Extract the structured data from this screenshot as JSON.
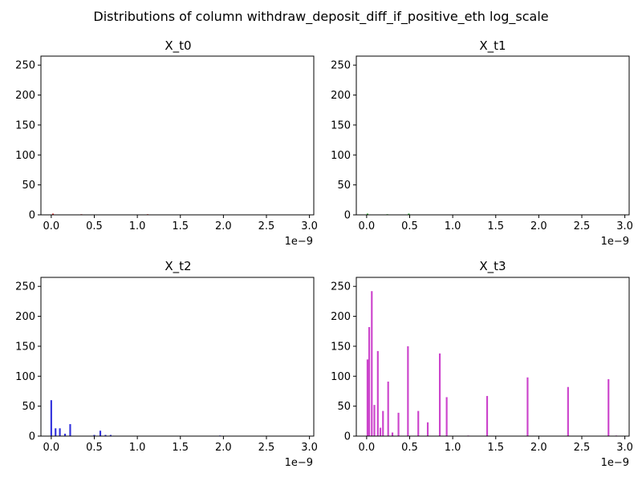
{
  "figure": {
    "title": "Distributions of column withdraw_deposit_diff_if_positive_eth log_scale"
  },
  "chart_data": [
    {
      "type": "bar",
      "title": "X_t0",
      "color": "#dd2222",
      "xlim": [
        -1.2e-10,
        3.05e-09
      ],
      "ylim": [
        0,
        265
      ],
      "xticks": [
        0,
        0.5,
        1.0,
        1.5,
        2.0,
        2.5,
        3.0
      ],
      "xtick_labels": [
        "0.0",
        "0.5",
        "1.0",
        "1.5",
        "2.0",
        "2.5",
        "3.0"
      ],
      "yticks": [
        0,
        50,
        100,
        150,
        200,
        250
      ],
      "ytick_labels": [
        "0",
        "50",
        "100",
        "150",
        "200",
        "250"
      ],
      "x_offset_label": "1e−9",
      "bar_width": 2e-11,
      "bars": [
        {
          "x": 2e-11,
          "y": 2
        },
        {
          "x": 3.5e-10,
          "y": 1
        },
        {
          "x": 1.12e-09,
          "y": 1
        }
      ]
    },
    {
      "type": "bar",
      "title": "X_t1",
      "color": "#22aa22",
      "xlim": [
        -1.2e-10,
        3.05e-09
      ],
      "ylim": [
        0,
        265
      ],
      "xticks": [
        0,
        0.5,
        1.0,
        1.5,
        2.0,
        2.5,
        3.0
      ],
      "xtick_labels": [
        "0.0",
        "0.5",
        "1.0",
        "1.5",
        "2.0",
        "2.5",
        "3.0"
      ],
      "yticks": [
        0,
        50,
        100,
        150,
        200,
        250
      ],
      "ytick_labels": [
        "0",
        "50",
        "100",
        "150",
        "200",
        "250"
      ],
      "x_offset_label": "1e−9",
      "bar_width": 2e-11,
      "bars": [
        {
          "x": 1e-11,
          "y": 2
        },
        {
          "x": 2.4e-10,
          "y": 1
        },
        {
          "x": 4.9e-10,
          "y": 2
        }
      ]
    },
    {
      "type": "bar",
      "title": "X_t2",
      "color": "#3333dd",
      "xlim": [
        -1.2e-10,
        3.05e-09
      ],
      "ylim": [
        0,
        265
      ],
      "xticks": [
        0,
        0.5,
        1.0,
        1.5,
        2.0,
        2.5,
        3.0
      ],
      "xtick_labels": [
        "0.0",
        "0.5",
        "1.0",
        "1.5",
        "2.0",
        "2.5",
        "3.0"
      ],
      "yticks": [
        0,
        50,
        100,
        150,
        200,
        250
      ],
      "ytick_labels": [
        "0",
        "50",
        "100",
        "150",
        "200",
        "250"
      ],
      "x_offset_label": "1e−9",
      "bar_width": 2e-11,
      "bars": [
        {
          "x": 0.0,
          "y": 60
        },
        {
          "x": 5e-11,
          "y": 13
        },
        {
          "x": 1e-10,
          "y": 13
        },
        {
          "x": 1.6e-10,
          "y": 4
        },
        {
          "x": 2.2e-10,
          "y": 20
        },
        {
          "x": 5e-10,
          "y": 2
        },
        {
          "x": 5.7e-10,
          "y": 9
        },
        {
          "x": 6.3e-10,
          "y": 2
        },
        {
          "x": 6.9e-10,
          "y": 2
        },
        {
          "x": 1.96e-09,
          "y": 1
        }
      ]
    },
    {
      "type": "bar",
      "title": "X_t3",
      "color": "#cc44cc",
      "xlim": [
        -1.2e-10,
        3.05e-09
      ],
      "ylim": [
        0,
        265
      ],
      "xticks": [
        0,
        0.5,
        1.0,
        1.5,
        2.0,
        2.5,
        3.0
      ],
      "xtick_labels": [
        "0.0",
        "0.5",
        "1.0",
        "1.5",
        "2.0",
        "2.5",
        "3.0"
      ],
      "yticks": [
        0,
        50,
        100,
        150,
        200,
        250
      ],
      "ytick_labels": [
        "0",
        "50",
        "100",
        "150",
        "200",
        "250"
      ],
      "x_offset_label": "1e−9",
      "bar_width": 2e-11,
      "bars": [
        {
          "x": 1e-11,
          "y": 128
        },
        {
          "x": 3e-11,
          "y": 182
        },
        {
          "x": 6e-11,
          "y": 242
        },
        {
          "x": 9e-11,
          "y": 52
        },
        {
          "x": 1.3e-10,
          "y": 142
        },
        {
          "x": 1.6e-10,
          "y": 14
        },
        {
          "x": 1.9e-10,
          "y": 42
        },
        {
          "x": 2.5e-10,
          "y": 91
        },
        {
          "x": 3e-10,
          "y": 6
        },
        {
          "x": 3.7e-10,
          "y": 39
        },
        {
          "x": 4.8e-10,
          "y": 150
        },
        {
          "x": 6e-10,
          "y": 42
        },
        {
          "x": 7.1e-10,
          "y": 23
        },
        {
          "x": 8.5e-10,
          "y": 138
        },
        {
          "x": 9.3e-10,
          "y": 65
        },
        {
          "x": 1.18e-09,
          "y": 1
        },
        {
          "x": 1.4e-09,
          "y": 67
        },
        {
          "x": 1.87e-09,
          "y": 98
        },
        {
          "x": 2.34e-09,
          "y": 82
        },
        {
          "x": 2.81e-09,
          "y": 95
        },
        {
          "x": 2.9e-09,
          "y": 1
        }
      ]
    }
  ]
}
